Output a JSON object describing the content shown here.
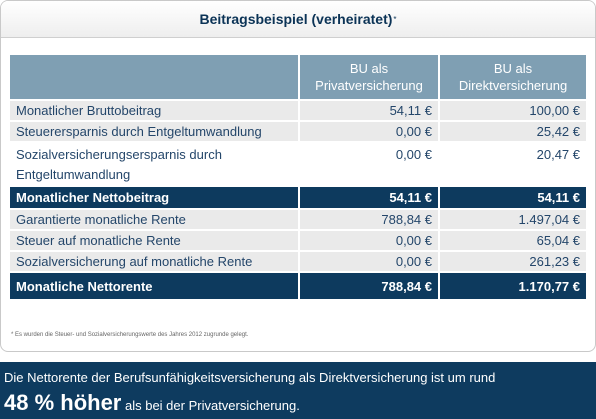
{
  "card": {
    "title": "Beitragsbeispiel (verheiratet)",
    "title_mark": "*"
  },
  "table": {
    "columns": [
      "BU als Privatversicherung",
      "BU als Direktversicherung"
    ],
    "columns_lines": [
      [
        "BU als",
        "Privatversicherung"
      ],
      [
        "BU als",
        "Direktversicherung"
      ]
    ],
    "rows": [
      {
        "label": "Monatlicher Bruttobeitrag",
        "priv": "54,11 €",
        "direkt": "100,00 €"
      },
      {
        "label": "Steuerersparnis durch Entgeltumwandlung",
        "priv": "0,00 €",
        "direkt": "25,42 €"
      },
      {
        "label": "Sozialversicherungsersparnis durch",
        "label2": "Entgeltumwandlung",
        "priv": "0,00 €",
        "direkt": "20,47 €"
      },
      {
        "label": "Monatlicher Nettobeitrag",
        "priv": "54,11 €",
        "direkt": "54,11 €"
      },
      {
        "label": "Garantierte monatliche Rente",
        "priv": "788,84 €",
        "direkt": "1.497,04 €"
      },
      {
        "label": "Steuer auf monatliche Rente",
        "priv": "0,00 €",
        "direkt": "65,04 €"
      },
      {
        "label": "Sozialversicherung auf monatliche Rente",
        "priv": "0,00 €",
        "direkt": "261,23 €"
      },
      {
        "label": "Monatliche Nettorente",
        "priv": "788,84 €",
        "direkt": "1.170,77 €"
      }
    ]
  },
  "footnote": "* Es wurden die Steuer- und Sozialversicherungswerte des Jahres 2012 zugrunde gelegt.",
  "banner": {
    "line1": "Die Nettorente der Berufsunfähigkeitsversicherung als Direktversicherung ist um rund",
    "highlight": "48 % höher",
    "line2_rest": " als bei der Privatversicherung."
  },
  "colors": {
    "header_gray_blue": "#7f9fb3",
    "navy": "#0d3a5e",
    "row_gray": "#eaeaea"
  }
}
